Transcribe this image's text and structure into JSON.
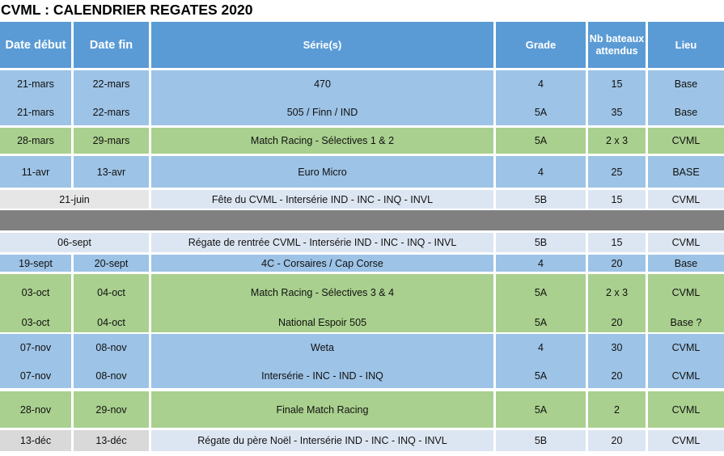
{
  "title": "CVML : CALENDRIER REGATES 2020",
  "headers": {
    "date_debut": "Date début",
    "date_fin": "Date fin",
    "series": "Série(s)",
    "grade": "Grade",
    "nb_bateaux_line1": "Nb bateaux",
    "nb_bateaux_line2": "attendus",
    "lieu": "Lieu"
  },
  "rows": [
    {
      "date_debut": "21-mars",
      "date_fin": "22-mars",
      "series": "470",
      "grade": "4",
      "nb": "15",
      "lieu": "Base"
    },
    {
      "date_debut": "21-mars",
      "date_fin": "22-mars",
      "series": "505 / Finn / IND",
      "grade": "5A",
      "nb": "35",
      "lieu": "Base"
    },
    {
      "date_debut": "28-mars",
      "date_fin": "29-mars",
      "series": "Match Racing - Sélectives 1 & 2",
      "grade": "5A",
      "nb": "2 x 3",
      "lieu": "CVML"
    },
    {
      "date_debut": "11-avr",
      "date_fin": "13-avr",
      "series": "Euro Micro",
      "grade": "4",
      "nb": "25",
      "lieu": "BASE"
    },
    {
      "date": "21-juin",
      "series": "Fête du CVML - Intersérie IND - INC - INQ - INVL",
      "grade": "5B",
      "nb": "15",
      "lieu": "CVML"
    },
    {
      "date": "06-sept",
      "series": "Régate de rentrée CVML - Intersérie IND - INC - INQ - INVL",
      "grade": "5B",
      "nb": "15",
      "lieu": "CVML"
    },
    {
      "date_debut": "19-sept",
      "date_fin": "20-sept",
      "series": "4C - Corsaires / Cap Corse",
      "grade": "4",
      "nb": "20",
      "lieu": "Base"
    },
    {
      "date_debut": "03-oct",
      "date_fin": "04-oct",
      "series": "Match Racing - Sélectives 3 & 4",
      "grade": "5A",
      "nb": "2 x 3",
      "lieu": "CVML"
    },
    {
      "date_debut": "03-oct",
      "date_fin": "04-oct",
      "series": "National Espoir 505",
      "grade": "5A",
      "nb": "20",
      "lieu": "Base ?"
    },
    {
      "date_debut": "07-nov",
      "date_fin": "08-nov",
      "series": "Weta",
      "grade": "4",
      "nb": "30",
      "lieu": "CVML"
    },
    {
      "date_debut": "07-nov",
      "date_fin": "08-nov",
      "series": "Intersérie - INC - IND - INQ",
      "grade": "5A",
      "nb": "20",
      "lieu": "CVML"
    },
    {
      "date_debut": "28-nov",
      "date_fin": "29-nov",
      "series": "Finale Match Racing",
      "grade": "5A",
      "nb": "2",
      "lieu": "CVML"
    },
    {
      "date_debut": "13-déc",
      "date_fin": "13-déc",
      "series": "Régate du père Noël - Intersérie IND - INC - INQ - INVL",
      "grade": "5B",
      "nb": "20",
      "lieu": "CVML"
    }
  ],
  "colors": {
    "header": "#5b9bd5",
    "blue_row": "#9dc3e6",
    "green_row": "#a9d08e",
    "pale_cell": "#dce6f2",
    "grey_cell": "#e6e6e6",
    "separator": "#808080"
  }
}
